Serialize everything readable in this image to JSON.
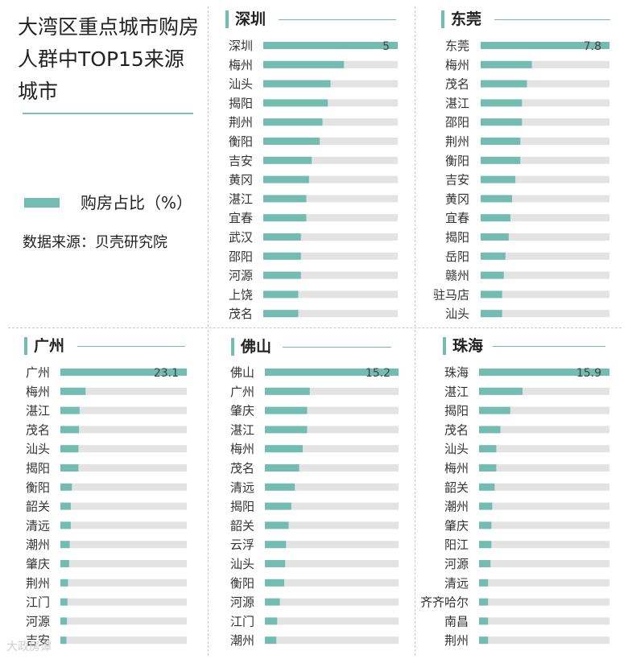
{
  "title": "大湾区重点城市购房人群中TOP15来源城市",
  "legend": {
    "label": "购房占比（%）",
    "color": "#72bcb1"
  },
  "source": "数据来源：贝壳研究院",
  "watermark": "大政房谭",
  "colors": {
    "bar": "#72bcb1",
    "track": "#e3e3e3"
  },
  "chart_data": [
    {
      "type": "bar",
      "title": "深圳",
      "unit": "%",
      "max_value_label": "5",
      "categories": [
        "深圳",
        "梅州",
        "汕头",
        "揭阳",
        "荆州",
        "衡阳",
        "吉安",
        "黄冈",
        "湛江",
        "宜春",
        "武汉",
        "邵阳",
        "河源",
        "上饶",
        "茂名"
      ],
      "values": [
        5,
        3.0,
        2.5,
        2.4,
        2.2,
        2.1,
        1.8,
        1.7,
        1.6,
        1.6,
        1.4,
        1.4,
        1.4,
        1.3,
        1.3
      ]
    },
    {
      "type": "bar",
      "title": "东莞",
      "unit": "%",
      "max_value_label": "7.8",
      "categories": [
        "东莞",
        "梅州",
        "茂名",
        "湛江",
        "邵阳",
        "荆州",
        "衡阳",
        "吉安",
        "黄冈",
        "宜春",
        "揭阳",
        "岳阳",
        "赣州",
        "驻马店",
        "汕头"
      ],
      "values": [
        7.8,
        3.1,
        2.8,
        2.5,
        2.5,
        2.4,
        2.4,
        2.1,
        1.9,
        1.8,
        1.7,
        1.5,
        1.4,
        1.3,
        1.3
      ]
    },
    {
      "type": "bar",
      "title": "广州",
      "unit": "%",
      "max_value_label": "23.1",
      "categories": [
        "广州",
        "梅州",
        "湛江",
        "茂名",
        "汕头",
        "揭阳",
        "衡阳",
        "韶关",
        "清远",
        "潮州",
        "肇庆",
        "荆州",
        "江门",
        "河源",
        "吉安"
      ],
      "values": [
        23.1,
        4.6,
        3.5,
        3.4,
        3.3,
        3.3,
        2.1,
        1.9,
        1.9,
        1.7,
        1.6,
        1.4,
        1.3,
        1.2,
        1.1
      ]
    },
    {
      "type": "bar",
      "title": "佛山",
      "unit": "%",
      "max_value_label": "15.2",
      "categories": [
        "佛山",
        "广州",
        "肇庆",
        "湛江",
        "梅州",
        "茂名",
        "清远",
        "揭阳",
        "韶关",
        "云浮",
        "汕头",
        "衡阳",
        "河源",
        "江门",
        "潮州"
      ],
      "values": [
        15.2,
        5.1,
        4.8,
        4.8,
        4.3,
        3.9,
        3.4,
        3.0,
        2.7,
        2.4,
        2.3,
        2.2,
        1.7,
        1.4,
        1.3
      ]
    },
    {
      "type": "bar",
      "title": "珠海",
      "unit": "%",
      "max_value_label": "15.9",
      "categories": [
        "珠海",
        "湛江",
        "揭阳",
        "茂名",
        "汕头",
        "梅州",
        "韶关",
        "潮州",
        "肇庆",
        "阳江",
        "河源",
        "清远",
        "齐齐哈尔",
        "南昌",
        "荆州"
      ],
      "values": [
        15.9,
        5.3,
        3.8,
        2.6,
        2.1,
        2.1,
        1.9,
        1.6,
        1.5,
        1.5,
        1.4,
        1.1,
        1.1,
        1.1,
        1.1
      ]
    }
  ]
}
